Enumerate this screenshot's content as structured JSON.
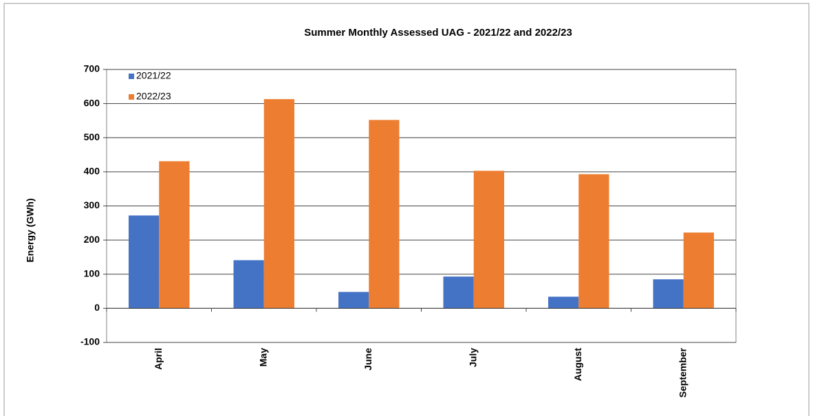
{
  "chart_data": {
    "type": "bar",
    "title": "Summer Monthly Assessed UAG - 2021/22 and 2022/23",
    "y_label": "Energy (GWh)",
    "categories": [
      "April",
      "May",
      "June",
      "July",
      "August",
      "September"
    ],
    "series": [
      {
        "name": "2021/22",
        "color": "#4472c4",
        "values": [
          272,
          141,
          48,
          93,
          34,
          85
        ]
      },
      {
        "name": "2022/23",
        "color": "#ed7d31",
        "values": [
          431,
          613,
          552,
          403,
          393,
          222
        ]
      }
    ],
    "ylim": [
      -100,
      700
    ],
    "yticks": [
      -100,
      0,
      100,
      200,
      300,
      400,
      500,
      600,
      700
    ],
    "grid": true,
    "legend": "top-left"
  }
}
